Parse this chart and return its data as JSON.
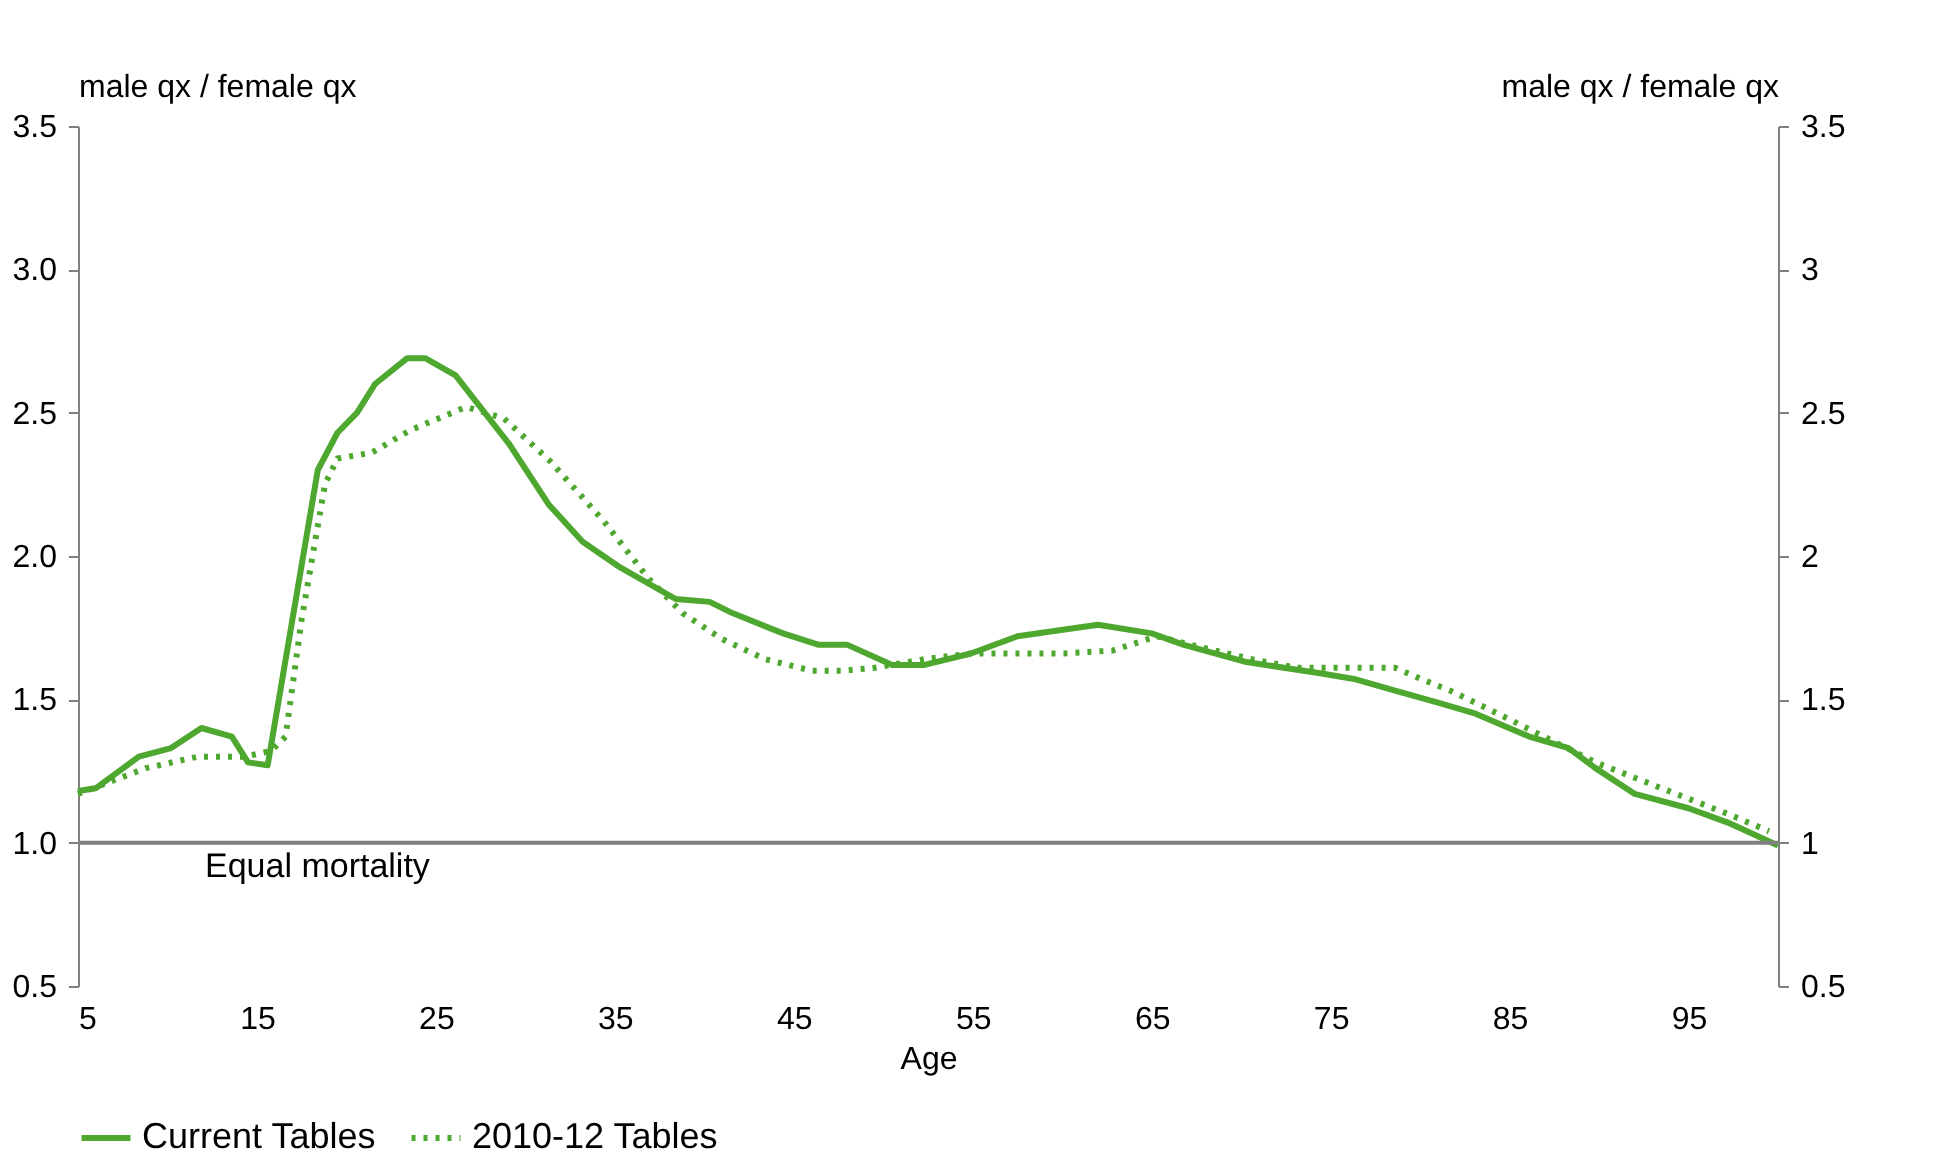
{
  "chart_data": {
    "type": "line",
    "xlabel": "Age",
    "ylabel": "male qx / female qx",
    "y2label": "male qx / female qx",
    "xlim": [
      5,
      100
    ],
    "xticks": [
      5,
      15,
      25,
      35,
      45,
      55,
      65,
      75,
      85,
      95
    ],
    "ylim": [
      0.5,
      3.5
    ],
    "yticks": [
      {
        "value": 0.5,
        "label": "0.5"
      },
      {
        "value": 1,
        "label": "1.0"
      },
      {
        "value": 1.5,
        "label": "1.5"
      },
      {
        "value": 2,
        "label": "2.0"
      },
      {
        "value": 2.5,
        "label": "2.5"
      },
      {
        "value": 3,
        "label": "3.0"
      },
      {
        "value": 3.5,
        "label": "3.5"
      }
    ],
    "y2lim": [
      0.5,
      3.5
    ],
    "y2ticks": [
      0.5,
      1,
      1.5,
      2,
      2.5,
      3,
      3.5
    ],
    "grid": false,
    "legend": "bottom",
    "marker": "none",
    "ref_lines": [
      {
        "axis": "y",
        "value": 1,
        "label": "Equal mortality",
        "color": "#808080"
      }
    ],
    "series": [
      {
        "name": "Current Tables",
        "color": "#4ea72e",
        "line_style": "solid",
        "x": [
          5,
          6,
          8.4,
          10.2,
          11.9,
          13.6,
          14.5,
          15.6,
          18.4,
          19.5,
          20.6,
          21.6,
          23.4,
          24.4,
          26.1,
          29.1,
          31.3,
          33.2,
          35.3,
          38.4,
          40.3,
          41.6,
          44.4,
          46.4,
          48,
          50.5,
          52.3,
          54.9,
          57.5,
          62,
          65,
          66.8,
          70.3,
          74.5,
          76.4,
          78.6,
          80.9,
          83.1,
          86.1,
          88.3,
          89.8,
          92,
          95,
          97.2,
          100
        ],
        "values": [
          1.18,
          1.19,
          1.3,
          1.33,
          1.4,
          1.37,
          1.28,
          1.27,
          2.3,
          2.43,
          2.5,
          2.6,
          2.69,
          2.69,
          2.63,
          2.39,
          2.18,
          2.05,
          1.96,
          1.85,
          1.84,
          1.8,
          1.73,
          1.69,
          1.69,
          1.62,
          1.62,
          1.66,
          1.72,
          1.76,
          1.73,
          1.69,
          1.63,
          1.59,
          1.57,
          1.53,
          1.49,
          1.45,
          1.37,
          1.33,
          1.26,
          1.17,
          1.12,
          1.07,
          0.99
        ]
      },
      {
        "name": "2010-12 Tables",
        "color": "#4ea72e",
        "line_style": "dotted",
        "x": [
          5,
          8.8,
          11.7,
          14.3,
          15.8,
          16.6,
          17.5,
          18.8,
          19.5,
          21.4,
          23.6,
          26.7,
          28.8,
          31.4,
          34.4,
          36.9,
          38.8,
          41,
          43.4,
          46,
          47.8,
          49.5,
          52.3,
          54.9,
          58.3,
          60.1,
          62.8,
          65.3,
          67.2,
          70.6,
          73.1,
          78.6,
          80.1,
          81.7,
          85,
          89.8,
          93.9,
          97.2,
          99.5
        ],
        "values": [
          1.17,
          1.26,
          1.3,
          1.3,
          1.32,
          1.37,
          1.78,
          2.25,
          2.34,
          2.36,
          2.44,
          2.52,
          2.48,
          2.33,
          2.12,
          1.92,
          1.8,
          1.71,
          1.64,
          1.6,
          1.6,
          1.61,
          1.64,
          1.66,
          1.66,
          1.66,
          1.67,
          1.72,
          1.69,
          1.64,
          1.61,
          1.61,
          1.57,
          1.53,
          1.43,
          1.28,
          1.18,
          1.1,
          1.04
        ]
      }
    ]
  }
}
